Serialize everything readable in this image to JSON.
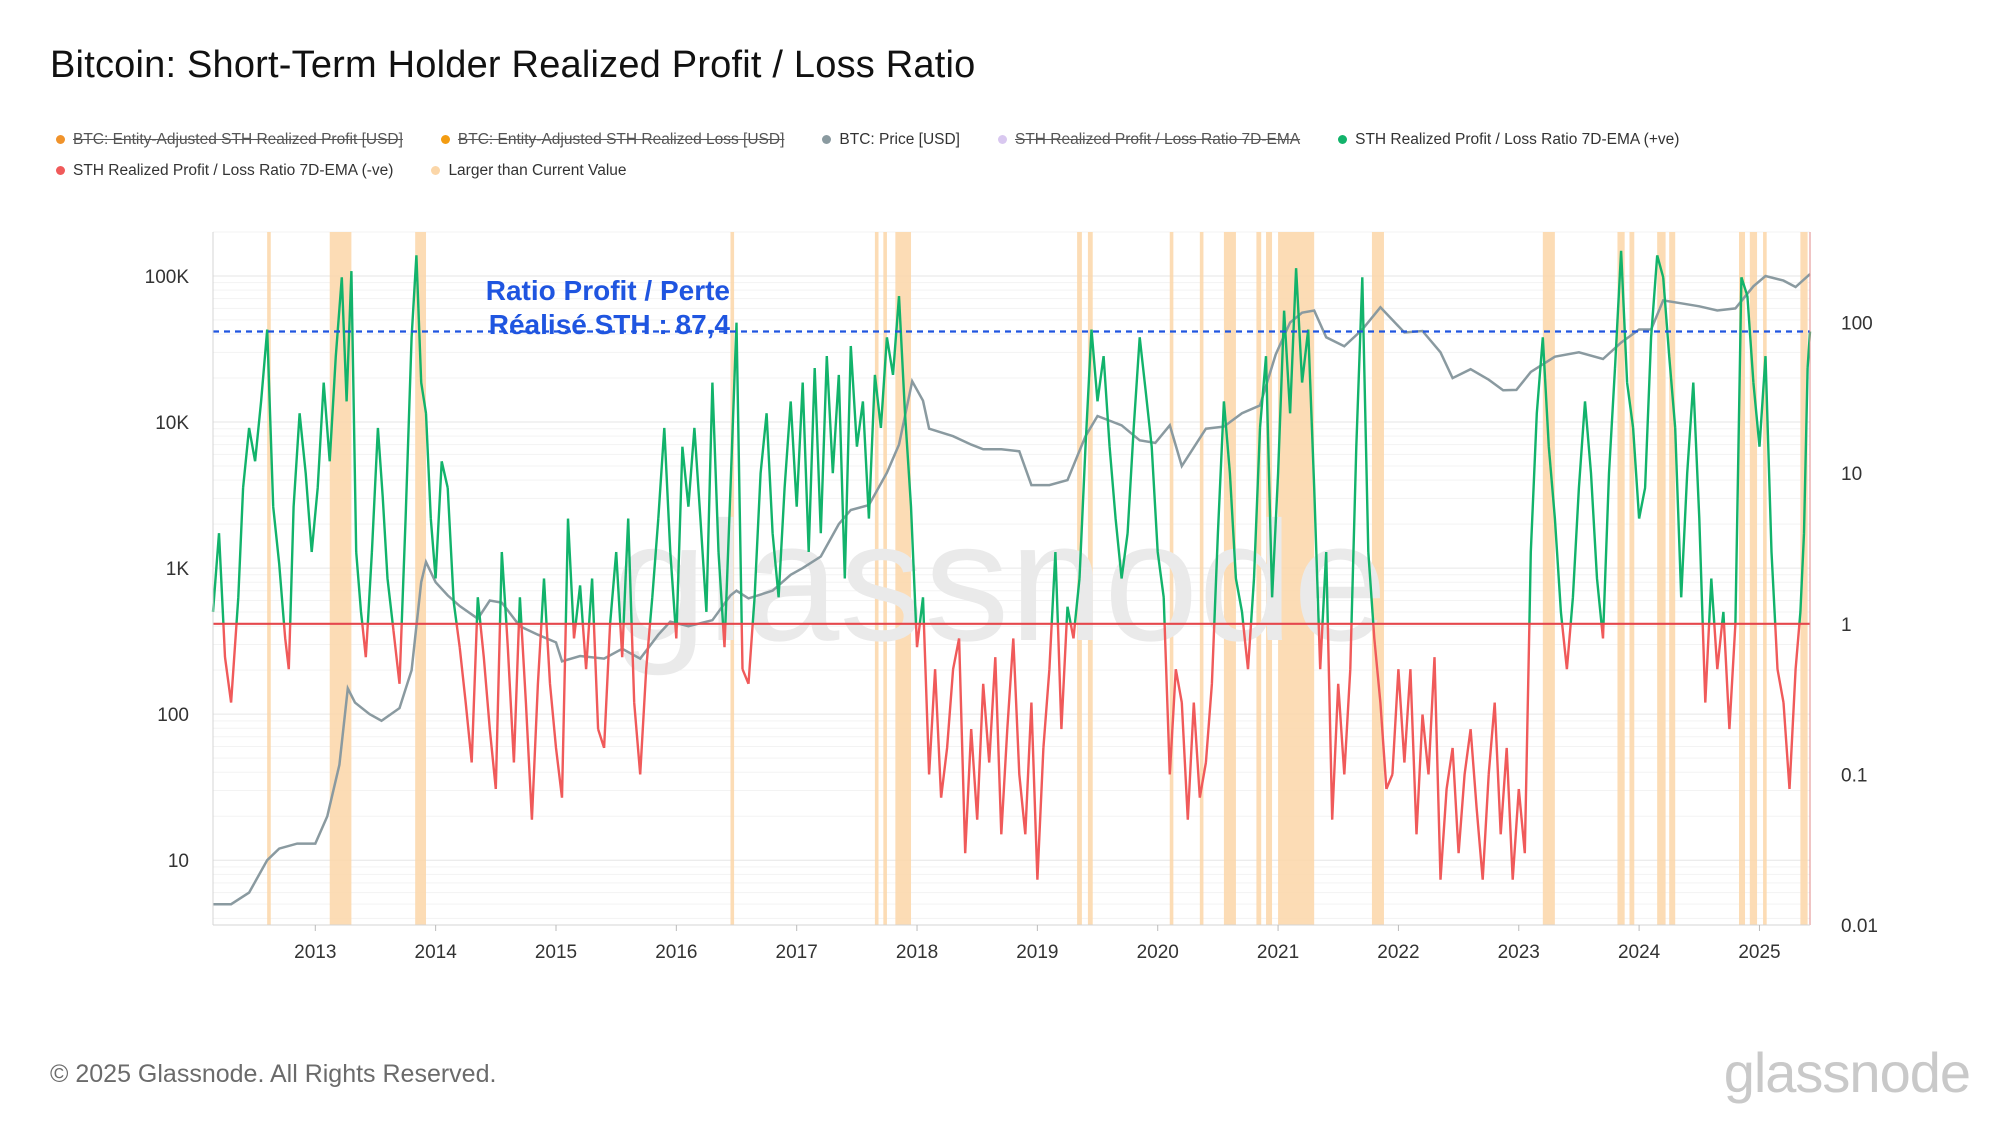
{
  "header": {
    "title": "Bitcoin: Short-Term Holder Realized Profit / Loss Ratio"
  },
  "legend": {
    "items": [
      {
        "label": "BTC: Entity-Adjusted STH Realized Profit [USD]",
        "color": "#f0932b",
        "struck": true
      },
      {
        "label": "BTC: Entity-Adjusted STH Realized Loss [USD]",
        "color": "#f39c12",
        "struck": true
      },
      {
        "label": "BTC: Price [USD]",
        "color": "#8a9aa0",
        "struck": false
      },
      {
        "label": "STH Realized Profit / Loss Ratio 7D-EMA",
        "color": "#d9c8f0",
        "struck": true
      },
      {
        "label": "STH Realized Profit / Loss Ratio 7D-EMA (+ve)",
        "color": "#12b36b",
        "struck": false
      },
      {
        "label": "STH Realized Profit / Loss Ratio 7D-EMA (-ve)",
        "color": "#f05a5a",
        "struck": false
      },
      {
        "label": "Larger than Current Value",
        "color": "#fbd6a8",
        "struck": false
      }
    ]
  },
  "footer": {
    "copyright": "© 2025 Glassnode. All Rights Reserved.",
    "brand": "glassnode"
  },
  "colors": {
    "price": "#8a9aa0",
    "positive": "#12b36b",
    "negative": "#f05a5a",
    "highlight": "#fbd6a8",
    "reference": "#1f55e0",
    "threshold": "#e5484d"
  },
  "chart_data": {
    "type": "line",
    "watermark": "glassnode",
    "annotation": {
      "line1": "Ratio Profit / Perte",
      "line2": "Réalisé STH : 87,4",
      "value": 87.4
    },
    "threshold_value": 1,
    "x_domain": [
      2012.15,
      2025.42
    ],
    "x_ticks": [
      {
        "value": 2013,
        "label": "2013"
      },
      {
        "value": 2014,
        "label": "2014"
      },
      {
        "value": 2015,
        "label": "2015"
      },
      {
        "value": 2016,
        "label": "2016"
      },
      {
        "value": 2017,
        "label": "2017"
      },
      {
        "value": 2018,
        "label": "2018"
      },
      {
        "value": 2019,
        "label": "2019"
      },
      {
        "value": 2020,
        "label": "2020"
      },
      {
        "value": 2021,
        "label": "2021"
      },
      {
        "value": 2022,
        "label": "2022"
      },
      {
        "value": 2023,
        "label": "2023"
      },
      {
        "value": 2024,
        "label": "2024"
      },
      {
        "value": 2025,
        "label": "2025"
      }
    ],
    "y_left": {
      "scale": "log",
      "range": [
        3.6,
        200000
      ],
      "ticks": [
        {
          "value": 10,
          "label": "10"
        },
        {
          "value": 100,
          "label": "100"
        },
        {
          "value": 1000,
          "label": "1K"
        },
        {
          "value": 10000,
          "label": "10K"
        },
        {
          "value": 100000,
          "label": "100K"
        }
      ]
    },
    "y_right": {
      "scale": "log",
      "range": [
        0.01,
        400
      ],
      "ticks": [
        {
          "value": 0.01,
          "label": "0.01"
        },
        {
          "value": 0.1,
          "label": "0.1"
        },
        {
          "value": 1,
          "label": "1"
        },
        {
          "value": 10,
          "label": "10"
        },
        {
          "value": 100,
          "label": "100"
        }
      ]
    },
    "price_series": {
      "name": "BTC: Price [USD]",
      "x": [
        2012.15,
        2012.3,
        2012.45,
        2012.6,
        2012.7,
        2012.85,
        2013.0,
        2013.1,
        2013.2,
        2013.27,
        2013.33,
        2013.45,
        2013.55,
        2013.7,
        2013.8,
        2013.88,
        2013.92,
        2014.0,
        2014.1,
        2014.2,
        2014.35,
        2014.45,
        2014.55,
        2014.7,
        2014.85,
        2015.0,
        2015.05,
        2015.2,
        2015.4,
        2015.55,
        2015.7,
        2015.85,
        2015.95,
        2016.1,
        2016.3,
        2016.45,
        2016.5,
        2016.6,
        2016.8,
        2016.95,
        2017.05,
        2017.2,
        2017.35,
        2017.45,
        2017.6,
        2017.75,
        2017.85,
        2017.96,
        2018.05,
        2018.1,
        2018.3,
        2018.45,
        2018.55,
        2018.7,
        2018.85,
        2018.95,
        2019.1,
        2019.25,
        2019.4,
        2019.5,
        2019.7,
        2019.85,
        2019.98,
        2020.1,
        2020.2,
        2020.4,
        2020.55,
        2020.7,
        2020.85,
        2020.98,
        2021.1,
        2021.2,
        2021.3,
        2021.4,
        2021.55,
        2021.7,
        2021.85,
        2021.95,
        2022.05,
        2022.2,
        2022.35,
        2022.45,
        2022.6,
        2022.75,
        2022.87,
        2022.98,
        2023.1,
        2023.3,
        2023.5,
        2023.7,
        2023.85,
        2024.0,
        2024.1,
        2024.2,
        2024.35,
        2024.5,
        2024.65,
        2024.8,
        2024.95,
        2025.05,
        2025.2,
        2025.3,
        2025.42
      ],
      "values": [
        5,
        5,
        6,
        10,
        12,
        13,
        13,
        20,
        45,
        150,
        120,
        100,
        90,
        110,
        200,
        800,
        1100,
        800,
        650,
        550,
        450,
        600,
        580,
        400,
        350,
        310,
        230,
        250,
        240,
        280,
        240,
        350,
        430,
        400,
        440,
        650,
        700,
        620,
        700,
        900,
        1000,
        1200,
        2000,
        2500,
        2700,
        4500,
        7000,
        19000,
        14000,
        9000,
        8000,
        7000,
        6500,
        6500,
        6300,
        3700,
        3700,
        4000,
        8000,
        11000,
        9500,
        7500,
        7200,
        9500,
        5000,
        9000,
        9300,
        11500,
        13000,
        29000,
        48000,
        56000,
        58000,
        38000,
        33000,
        43000,
        61000,
        50000,
        41000,
        42000,
        30000,
        20000,
        23000,
        19500,
        16500,
        16600,
        22000,
        28000,
        30000,
        27000,
        35000,
        43000,
        43000,
        68000,
        65000,
        62000,
        58000,
        60000,
        85000,
        100000,
        93000,
        84000,
        103000
      ]
    },
    "ratio_series": {
      "name": "STH Realized Profit / Loss Ratio 7D-EMA",
      "x": [
        2012.15,
        2012.2,
        2012.25,
        2012.3,
        2012.36,
        2012.4,
        2012.45,
        2012.5,
        2012.55,
        2012.6,
        2012.65,
        2012.7,
        2012.75,
        2012.78,
        2012.82,
        2012.87,
        2012.92,
        2012.97,
        2013.02,
        2013.07,
        2013.12,
        2013.17,
        2013.22,
        2013.26,
        2013.3,
        2013.34,
        2013.38,
        2013.42,
        2013.47,
        2013.52,
        2013.56,
        2013.6,
        2013.65,
        2013.7,
        2013.75,
        2013.8,
        2013.84,
        2013.88,
        2013.92,
        2013.96,
        2014.0,
        2014.05,
        2014.1,
        2014.15,
        2014.2,
        2014.25,
        2014.3,
        2014.35,
        2014.4,
        2014.45,
        2014.5,
        2014.55,
        2014.6,
        2014.65,
        2014.7,
        2014.75,
        2014.8,
        2014.85,
        2014.9,
        2014.95,
        2015.0,
        2015.05,
        2015.1,
        2015.15,
        2015.2,
        2015.25,
        2015.3,
        2015.35,
        2015.4,
        2015.45,
        2015.5,
        2015.55,
        2015.6,
        2015.65,
        2015.7,
        2015.75,
        2015.8,
        2015.85,
        2015.9,
        2015.95,
        2016.0,
        2016.05,
        2016.1,
        2016.15,
        2016.2,
        2016.25,
        2016.3,
        2016.35,
        2016.4,
        2016.45,
        2016.5,
        2016.55,
        2016.6,
        2016.65,
        2016.7,
        2016.75,
        2016.8,
        2016.85,
        2016.9,
        2016.95,
        2017.0,
        2017.05,
        2017.1,
        2017.15,
        2017.2,
        2017.25,
        2017.3,
        2017.35,
        2017.4,
        2017.45,
        2017.5,
        2017.55,
        2017.6,
        2017.65,
        2017.7,
        2017.75,
        2017.8,
        2017.85,
        2017.9,
        2017.95,
        2018.0,
        2018.05,
        2018.1,
        2018.15,
        2018.2,
        2018.25,
        2018.3,
        2018.35,
        2018.4,
        2018.45,
        2018.5,
        2018.55,
        2018.6,
        2018.65,
        2018.7,
        2018.75,
        2018.8,
        2018.85,
        2018.9,
        2018.95,
        2019.0,
        2019.05,
        2019.1,
        2019.15,
        2019.2,
        2019.25,
        2019.3,
        2019.35,
        2019.4,
        2019.45,
        2019.5,
        2019.55,
        2019.6,
        2019.65,
        2019.7,
        2019.75,
        2019.8,
        2019.85,
        2019.9,
        2019.95,
        2020.0,
        2020.05,
        2020.1,
        2020.15,
        2020.2,
        2020.25,
        2020.3,
        2020.35,
        2020.4,
        2020.45,
        2020.5,
        2020.55,
        2020.6,
        2020.65,
        2020.7,
        2020.75,
        2020.8,
        2020.85,
        2020.9,
        2020.95,
        2021.0,
        2021.05,
        2021.1,
        2021.15,
        2021.2,
        2021.25,
        2021.3,
        2021.35,
        2021.4,
        2021.45,
        2021.5,
        2021.55,
        2021.6,
        2021.65,
        2021.7,
        2021.75,
        2021.8,
        2021.85,
        2021.9,
        2021.95,
        2022.0,
        2022.05,
        2022.1,
        2022.15,
        2022.2,
        2022.25,
        2022.3,
        2022.35,
        2022.4,
        2022.45,
        2022.5,
        2022.55,
        2022.6,
        2022.65,
        2022.7,
        2022.75,
        2022.8,
        2022.85,
        2022.9,
        2022.95,
        2023.0,
        2023.05,
        2023.1,
        2023.15,
        2023.2,
        2023.25,
        2023.3,
        2023.35,
        2023.4,
        2023.45,
        2023.5,
        2023.55,
        2023.6,
        2023.65,
        2023.7,
        2023.75,
        2023.8,
        2023.85,
        2023.9,
        2023.95,
        2024.0,
        2024.05,
        2024.1,
        2024.15,
        2024.2,
        2024.25,
        2024.3,
        2024.35,
        2024.4,
        2024.45,
        2024.5,
        2024.55,
        2024.6,
        2024.65,
        2024.7,
        2024.75,
        2024.8,
        2024.85,
        2024.9,
        2024.95,
        2025.0,
        2025.05,
        2025.1,
        2025.15,
        2025.2,
        2025.25,
        2025.3,
        2025.34,
        2025.37,
        2025.4,
        2025.42
      ],
      "values": [
        1.2,
        4,
        0.6,
        0.3,
        1.5,
        8,
        20,
        12,
        30,
        90,
        6,
        2.5,
        0.8,
        0.5,
        6,
        25,
        10,
        3,
        8,
        40,
        12,
        60,
        200,
        30,
        220,
        3,
        1.2,
        0.6,
        3,
        20,
        7,
        2,
        0.9,
        0.4,
        5,
        80,
        280,
        40,
        25,
        5,
        2,
        12,
        8,
        1.4,
        0.7,
        0.3,
        0.12,
        1.5,
        0.6,
        0.2,
        0.08,
        3,
        0.7,
        0.12,
        1.5,
        0.3,
        0.05,
        0.4,
        2,
        0.4,
        0.15,
        0.07,
        5,
        0.8,
        1.8,
        0.5,
        2,
        0.2,
        0.15,
        1,
        3,
        0.6,
        5,
        0.3,
        0.1,
        0.5,
        1.5,
        5,
        20,
        3,
        0.8,
        15,
        6,
        20,
        5,
        1.2,
        40,
        3,
        0.7,
        8,
        100,
        0.5,
        0.4,
        1.5,
        10,
        25,
        4,
        1.5,
        8,
        30,
        6,
        40,
        3,
        50,
        4,
        60,
        10,
        45,
        2,
        70,
        15,
        30,
        5,
        45,
        20,
        80,
        45,
        150,
        25,
        6,
        0.7,
        1.5,
        0.1,
        0.5,
        0.07,
        0.15,
        0.5,
        0.8,
        0.03,
        0.2,
        0.05,
        0.4,
        0.12,
        0.6,
        0.04,
        0.2,
        0.8,
        0.1,
        0.04,
        0.3,
        0.02,
        0.15,
        0.5,
        3,
        0.2,
        1.3,
        0.8,
        2,
        15,
        90,
        30,
        60,
        15,
        5,
        2,
        4,
        20,
        80,
        35,
        15,
        3,
        1.5,
        0.1,
        0.5,
        0.3,
        0.05,
        0.3,
        0.07,
        0.12,
        0.4,
        4,
        30,
        10,
        2,
        1.2,
        0.5,
        2,
        20,
        60,
        1.5,
        10,
        120,
        25,
        230,
        40,
        90,
        8,
        0.5,
        3,
        0.05,
        0.4,
        0.1,
        0.5,
        15,
        200,
        3,
        0.8,
        0.3,
        0.08,
        0.1,
        0.5,
        0.12,
        0.5,
        0.04,
        0.25,
        0.1,
        0.6,
        0.02,
        0.08,
        0.15,
        0.03,
        0.1,
        0.2,
        0.06,
        0.02,
        0.1,
        0.3,
        0.04,
        0.15,
        0.02,
        0.08,
        0.03,
        3,
        25,
        80,
        15,
        5,
        1.2,
        0.5,
        1.5,
        8,
        30,
        10,
        2,
        0.8,
        10,
        50,
        300,
        40,
        20,
        5,
        8,
        80,
        280,
        200,
        60,
        20,
        1.5,
        10,
        40,
        5,
        0.3,
        2,
        0.5,
        1.2,
        0.2,
        1,
        200,
        150,
        40,
        15,
        60,
        3,
        0.5,
        0.3,
        0.08,
        0.5,
        1.2,
        4,
        50,
        87.4
      ]
    },
    "highlight_bands": [
      [
        2012.6,
        2012.63
      ],
      [
        2013.12,
        2013.3
      ],
      [
        2013.83,
        2013.92
      ],
      [
        2016.45,
        2016.48
      ],
      [
        2017.65,
        2017.68
      ],
      [
        2017.72,
        2017.75
      ],
      [
        2017.82,
        2017.95
      ],
      [
        2019.33,
        2019.37
      ],
      [
        2019.42,
        2019.46
      ],
      [
        2020.1,
        2020.13
      ],
      [
        2020.35,
        2020.38
      ],
      [
        2020.55,
        2020.65
      ],
      [
        2020.82,
        2020.86
      ],
      [
        2020.9,
        2020.95
      ],
      [
        2021.0,
        2021.3
      ],
      [
        2021.78,
        2021.88
      ],
      [
        2023.2,
        2023.3
      ],
      [
        2023.82,
        2023.88
      ],
      [
        2023.92,
        2023.96
      ],
      [
        2024.15,
        2024.22
      ],
      [
        2024.25,
        2024.3
      ],
      [
        2024.83,
        2024.88
      ],
      [
        2024.92,
        2024.98
      ],
      [
        2025.03,
        2025.06
      ],
      [
        2025.34,
        2025.4
      ]
    ]
  }
}
